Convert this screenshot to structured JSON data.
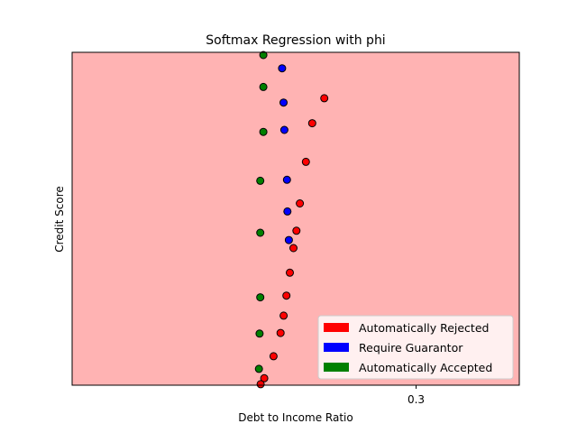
{
  "chart_data": {
    "type": "scatter",
    "title": "Softmax Regression with phi",
    "xlabel": "Debt to Income Ratio",
    "ylabel": "Credit Score",
    "xlim": [
      0.1,
      0.36
    ],
    "ylim": [
      0.0,
      1.0
    ],
    "xticks": [
      0.3
    ],
    "xtick_labels": [
      "0.3"
    ],
    "background_region_color": "#ffb3b3",
    "grid": false,
    "legend_position": "lower-right",
    "legend": [
      {
        "label": "Automatically Rejected",
        "color": "#ff0000"
      },
      {
        "label": "Require Guarantor",
        "color": "#0000ff"
      },
      {
        "label": "Automatically Accepted",
        "color": "#008000"
      }
    ],
    "series": [
      {
        "name": "Automatically Rejected",
        "color": "#ff0000",
        "points": [
          [
            0.2466,
            0.862
          ],
          [
            0.2396,
            0.787
          ],
          [
            0.2359,
            0.671
          ],
          [
            0.2324,
            0.546
          ],
          [
            0.2304,
            0.464
          ],
          [
            0.2287,
            0.412
          ],
          [
            0.2266,
            0.338
          ],
          [
            0.2246,
            0.269
          ],
          [
            0.223,
            0.209
          ],
          [
            0.2212,
            0.157
          ],
          [
            0.2171,
            0.087
          ],
          [
            0.2117,
            0.021
          ],
          [
            0.2096,
            0.003
          ]
        ]
      },
      {
        "name": "Require Guarantor",
        "color": "#0000ff",
        "points": [
          [
            0.2221,
            0.952
          ],
          [
            0.2229,
            0.849
          ],
          [
            0.2234,
            0.767
          ],
          [
            0.2249,
            0.617
          ],
          [
            0.2252,
            0.522
          ],
          [
            0.226,
            0.436
          ]
        ]
      },
      {
        "name": "Automatically Accepted",
        "color": "#008000",
        "points": [
          [
            0.2112,
            0.992
          ],
          [
            0.2112,
            0.896
          ],
          [
            0.2112,
            0.761
          ],
          [
            0.2094,
            0.614
          ],
          [
            0.2094,
            0.458
          ],
          [
            0.2094,
            0.264
          ],
          [
            0.209,
            0.155
          ],
          [
            0.2086,
            0.049
          ]
        ]
      }
    ]
  }
}
